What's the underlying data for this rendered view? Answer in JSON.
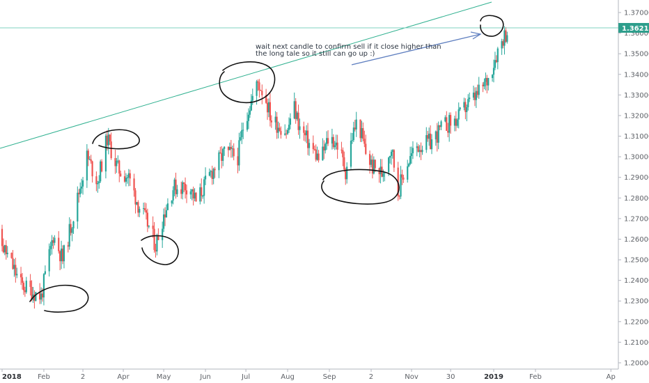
{
  "chart_data": {
    "type": "candlestick",
    "y_axis": {
      "range": [
        1.195,
        1.377
      ],
      "ticks": [
        "1.37000",
        "1.36000",
        "1.35000",
        "1.34000",
        "1.33000",
        "1.32000",
        "1.31000",
        "1.30000",
        "1.29000",
        "1.28000",
        "1.27000",
        "1.26000",
        "1.25000",
        "1.24000",
        "1.23000",
        "1.22000",
        "1.21000",
        "1.20000"
      ],
      "position": "right",
      "grid": false
    },
    "x_axis": {
      "ticks": [
        {
          "label": "2018",
          "bold": true
        },
        {
          "label": "Feb",
          "bold": false
        },
        {
          "label": "2",
          "bold": false
        },
        {
          "label": "Apr",
          "bold": false
        },
        {
          "label": "May",
          "bold": false
        },
        {
          "label": "Jun",
          "bold": false
        },
        {
          "label": "Jul",
          "bold": false
        },
        {
          "label": "Aug",
          "bold": false
        },
        {
          "label": "Sep",
          "bold": false
        },
        {
          "label": "2",
          "bold": false
        },
        {
          "label": "Nov",
          "bold": false
        },
        {
          "label": "30",
          "bold": false
        },
        {
          "label": "2019",
          "bold": true
        },
        {
          "label": "Feb",
          "bold": false
        },
        {
          "label": "Ap",
          "bold": false
        }
      ]
    },
    "last_price": {
      "label": "1.36210",
      "value": 1.3621,
      "color": "#2e9e8c"
    },
    "annotation": {
      "line1": "wait next candle to confirm sell if it close higher than",
      "line2": "the long tale so it still can go up :)"
    },
    "colors": {
      "up": "#26a69a",
      "down": "#ef5350",
      "trendline": "#2eb08f",
      "horizontal_line": "#7fd1c1",
      "arrow": "#5f7fc0",
      "circle": "#111111"
    },
    "anchors": [
      {
        "date": "2017-12-25",
        "close": 1.266
      },
      {
        "date": "2018-01-05",
        "close": 1.252
      },
      {
        "date": "2018-01-15",
        "close": 1.238
      },
      {
        "date": "2018-01-30",
        "close": 1.232
      },
      {
        "date": "2018-02-08",
        "close": 1.262
      },
      {
        "date": "2018-02-15",
        "close": 1.25
      },
      {
        "date": "2018-02-25",
        "close": 1.277
      },
      {
        "date": "2018-03-05",
        "close": 1.3
      },
      {
        "date": "2018-03-13",
        "close": 1.288
      },
      {
        "date": "2018-03-20",
        "close": 1.309
      },
      {
        "date": "2018-03-28",
        "close": 1.294
      },
      {
        "date": "2018-04-05",
        "close": 1.29
      },
      {
        "date": "2018-04-12",
        "close": 1.277
      },
      {
        "date": "2018-04-20",
        "close": 1.266
      },
      {
        "date": "2018-04-25",
        "close": 1.257
      },
      {
        "date": "2018-05-01",
        "close": 1.272
      },
      {
        "date": "2018-05-08",
        "close": 1.285
      },
      {
        "date": "2018-05-20",
        "close": 1.286
      },
      {
        "date": "2018-05-25",
        "close": 1.278
      },
      {
        "date": "2018-06-05",
        "close": 1.292
      },
      {
        "date": "2018-06-15",
        "close": 1.302
      },
      {
        "date": "2018-06-25",
        "close": 1.3
      },
      {
        "date": "2018-06-30",
        "close": 1.318
      },
      {
        "date": "2018-07-10",
        "close": 1.336
      },
      {
        "date": "2018-07-15",
        "close": 1.33
      },
      {
        "date": "2018-07-20",
        "close": 1.318
      },
      {
        "date": "2018-08-01",
        "close": 1.312
      },
      {
        "date": "2018-08-05",
        "close": 1.326
      },
      {
        "date": "2018-08-10",
        "close": 1.314
      },
      {
        "date": "2018-08-20",
        "close": 1.303
      },
      {
        "date": "2018-08-25",
        "close": 1.298
      },
      {
        "date": "2018-09-01",
        "close": 1.31
      },
      {
        "date": "2018-09-08",
        "close": 1.305
      },
      {
        "date": "2018-09-13",
        "close": 1.293
      },
      {
        "date": "2018-09-18",
        "close": 1.31
      },
      {
        "date": "2018-09-22",
        "close": 1.318
      },
      {
        "date": "2018-09-28",
        "close": 1.302
      },
      {
        "date": "2018-10-03",
        "close": 1.295
      },
      {
        "date": "2018-10-10",
        "close": 1.292
      },
      {
        "date": "2018-10-17",
        "close": 1.305
      },
      {
        "date": "2018-10-22",
        "close": 1.283
      },
      {
        "date": "2018-10-28",
        "close": 1.296
      },
      {
        "date": "2018-11-05",
        "close": 1.305
      },
      {
        "date": "2018-11-15",
        "close": 1.307
      },
      {
        "date": "2018-11-25",
        "close": 1.315
      },
      {
        "date": "2018-12-05",
        "close": 1.318
      },
      {
        "date": "2018-12-12",
        "close": 1.325
      },
      {
        "date": "2018-12-20",
        "close": 1.33
      },
      {
        "date": "2018-12-28",
        "close": 1.338
      },
      {
        "date": "2019-01-03",
        "close": 1.35
      },
      {
        "date": "2019-01-08",
        "close": 1.358
      },
      {
        "date": "2019-01-12",
        "close": 1.3621
      }
    ]
  }
}
